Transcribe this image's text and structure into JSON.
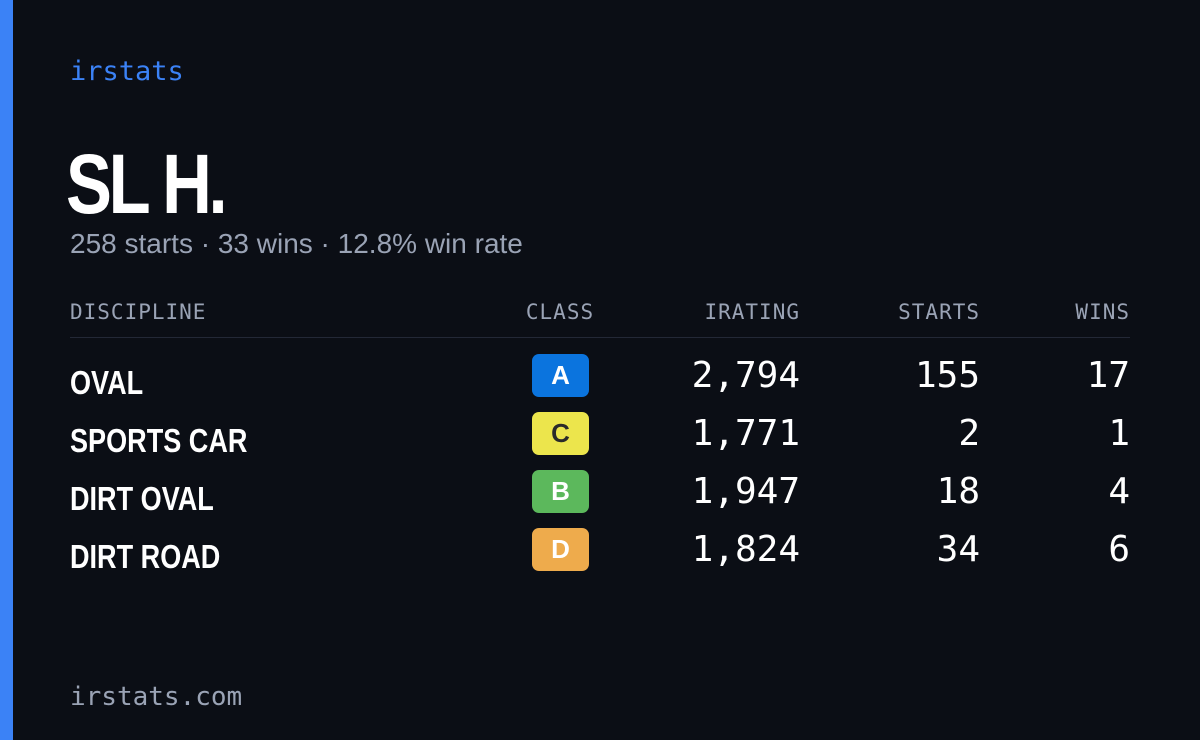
{
  "brand": "irstats",
  "driver": {
    "name": "SL H.",
    "summary": "258 starts · 33 wins · 12.8% win rate"
  },
  "table": {
    "headers": [
      "DISCIPLINE",
      "CLASS",
      "IRATING",
      "STARTS",
      "WINS"
    ],
    "rows": [
      {
        "discipline": "OVAL",
        "class": "A",
        "class_color": "#0b74de",
        "class_text_color": "#ffffff",
        "irating": "2,794",
        "starts": "155",
        "wins": "17"
      },
      {
        "discipline": "SPORTS CAR",
        "class": "C",
        "class_color": "#ece54c",
        "class_text_color": "#2a2a2a",
        "irating": "1,771",
        "starts": "2",
        "wins": "1"
      },
      {
        "discipline": "DIRT OVAL",
        "class": "B",
        "class_color": "#5cb85c",
        "class_text_color": "#ffffff",
        "irating": "1,947",
        "starts": "18",
        "wins": "4"
      },
      {
        "discipline": "DIRT ROAD",
        "class": "D",
        "class_color": "#eeab4c",
        "class_text_color": "#ffffff",
        "irating": "1,824",
        "starts": "34",
        "wins": "6"
      }
    ]
  },
  "footer": "irstats.com"
}
